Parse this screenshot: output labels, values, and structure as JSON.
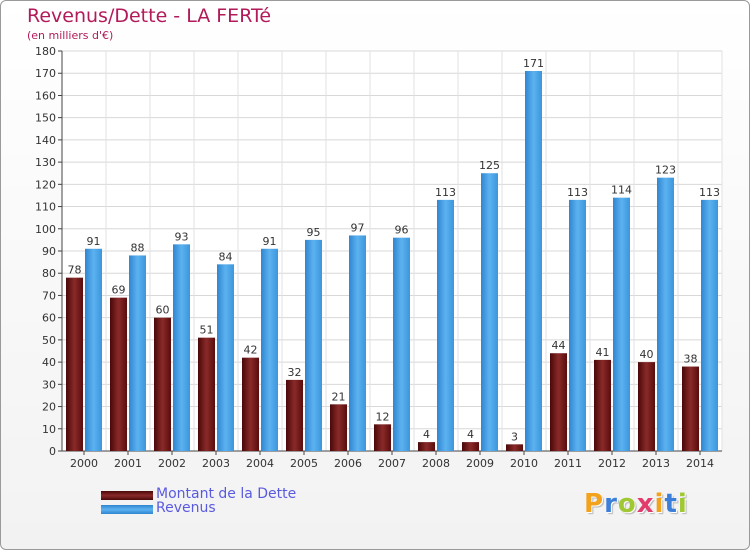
{
  "title": "Revenus/Dette - LA FERTé",
  "subtitle": "(en milliers d'€)",
  "logo": {
    "text": "Proxiti",
    "letter_colors": [
      "#f2a21b",
      "#3b7fd9",
      "#a0c832",
      "#e23c6d",
      "#f2a21b",
      "#3b7fd9",
      "#a0c832"
    ]
  },
  "chart_data": {
    "type": "bar",
    "title": "Revenus/Dette - LA FERTé",
    "subtitle": "(en milliers d'€)",
    "xlabel": "",
    "ylabel": "",
    "ylim": [
      0,
      180
    ],
    "yticks": [
      0,
      10,
      20,
      30,
      40,
      50,
      60,
      70,
      80,
      90,
      100,
      110,
      120,
      130,
      140,
      150,
      160,
      170,
      180
    ],
    "grid": true,
    "legend_position": "bottom-left",
    "categories": [
      "2000",
      "2001",
      "2002",
      "2003",
      "2004",
      "2005",
      "2006",
      "2007",
      "2008",
      "2009",
      "2010",
      "2011",
      "2012",
      "2013",
      "2014"
    ],
    "series": [
      {
        "name": "Montant de la Dette",
        "color": "#7a1c1c",
        "values": [
          78,
          69,
          60,
          51,
          42,
          32,
          21,
          12,
          4,
          4,
          3,
          44,
          41,
          40,
          38
        ]
      },
      {
        "name": "Revenus",
        "color": "#4aa3e6",
        "values": [
          91,
          88,
          93,
          84,
          91,
          95,
          97,
          96,
          113,
          125,
          171,
          113,
          114,
          123,
          113
        ]
      }
    ]
  }
}
